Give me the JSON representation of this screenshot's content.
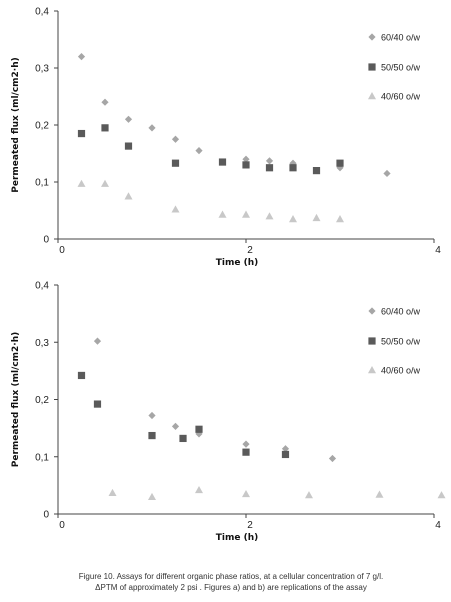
{
  "chart_data": [
    {
      "type": "scatter",
      "title": "",
      "xlabel": "Time (h)",
      "ylabel": "Permeated flux (ml/cm2·h)",
      "xlim": [
        0,
        4
      ],
      "ylim": [
        0,
        0.4
      ],
      "x_ticks": [
        "0",
        "2",
        "4"
      ],
      "y_ticks": [
        "0",
        "0,1",
        "0,2",
        "0,3",
        "0,4"
      ],
      "legend_position": "right",
      "series": [
        {
          "name": "60/40 o/w",
          "marker": "diamond",
          "color": "#a6a6a6",
          "points": [
            [
              0.25,
              0.32
            ],
            [
              0.5,
              0.24
            ],
            [
              0.75,
              0.21
            ],
            [
              1.0,
              0.195
            ],
            [
              1.25,
              0.175
            ],
            [
              1.5,
              0.155
            ],
            [
              2.0,
              0.14
            ],
            [
              2.25,
              0.137
            ],
            [
              2.5,
              0.133
            ],
            [
              3.0,
              0.125
            ],
            [
              3.5,
              0.115
            ]
          ]
        },
        {
          "name": "50/50 o/w",
          "marker": "square",
          "color": "#5a5a5a",
          "points": [
            [
              0.25,
              0.185
            ],
            [
              0.5,
              0.195
            ],
            [
              0.75,
              0.163
            ],
            [
              1.25,
              0.133
            ],
            [
              1.75,
              0.135
            ],
            [
              2.0,
              0.13
            ],
            [
              2.25,
              0.125
            ],
            [
              2.5,
              0.125
            ],
            [
              2.75,
              0.12
            ],
            [
              3.0,
              0.133
            ]
          ]
        },
        {
          "name": "40/60 o/w",
          "marker": "triangle",
          "color": "#c8c8c8",
          "points": [
            [
              0.25,
              0.097
            ],
            [
              0.5,
              0.097
            ],
            [
              0.75,
              0.075
            ],
            [
              1.25,
              0.052
            ],
            [
              1.75,
              0.043
            ],
            [
              2.0,
              0.043
            ],
            [
              2.25,
              0.04
            ],
            [
              2.5,
              0.035
            ],
            [
              2.75,
              0.037
            ],
            [
              3.0,
              0.035
            ]
          ]
        }
      ]
    },
    {
      "type": "scatter",
      "title": "",
      "xlabel": "Time (h)",
      "ylabel": "Permeated flux (ml/cm2·h)",
      "xlim": [
        0,
        4
      ],
      "ylim": [
        0,
        0.4
      ],
      "x_ticks": [
        "0",
        "2",
        "4"
      ],
      "y_ticks": [
        "0",
        "0,1",
        "0,2",
        "0,3",
        "0,4"
      ],
      "legend_position": "right",
      "series": [
        {
          "name": "60/40 o/w",
          "marker": "diamond",
          "color": "#a6a6a6",
          "points": [
            [
              0.42,
              0.302
            ],
            [
              1.0,
              0.172
            ],
            [
              1.25,
              0.153
            ],
            [
              1.5,
              0.14
            ],
            [
              2.0,
              0.122
            ],
            [
              2.42,
              0.114
            ],
            [
              2.92,
              0.097
            ]
          ]
        },
        {
          "name": "50/50 o/w",
          "marker": "square",
          "color": "#5a5a5a",
          "points": [
            [
              0.25,
              0.242
            ],
            [
              0.42,
              0.192
            ],
            [
              1.0,
              0.137
            ],
            [
              1.33,
              0.132
            ],
            [
              1.5,
              0.148
            ],
            [
              2.0,
              0.108
            ],
            [
              2.42,
              0.104
            ]
          ]
        },
        {
          "name": "40/60 o/w",
          "marker": "triangle",
          "color": "#c8c8c8",
          "points": [
            [
              0.58,
              0.037
            ],
            [
              1.0,
              0.03
            ],
            [
              1.5,
              0.042
            ],
            [
              2.0,
              0.035
            ],
            [
              2.67,
              0.033
            ],
            [
              3.42,
              0.034
            ],
            [
              4.08,
              0.033
            ]
          ]
        }
      ]
    }
  ],
  "caption": {
    "line1": "Figure 10. Assays for different organic phase ratios, at a cellular concentration of 7 g/l.",
    "line2": "ΔPTM of approximately 2 psi . Figures a) and b) are replications of the assay"
  }
}
